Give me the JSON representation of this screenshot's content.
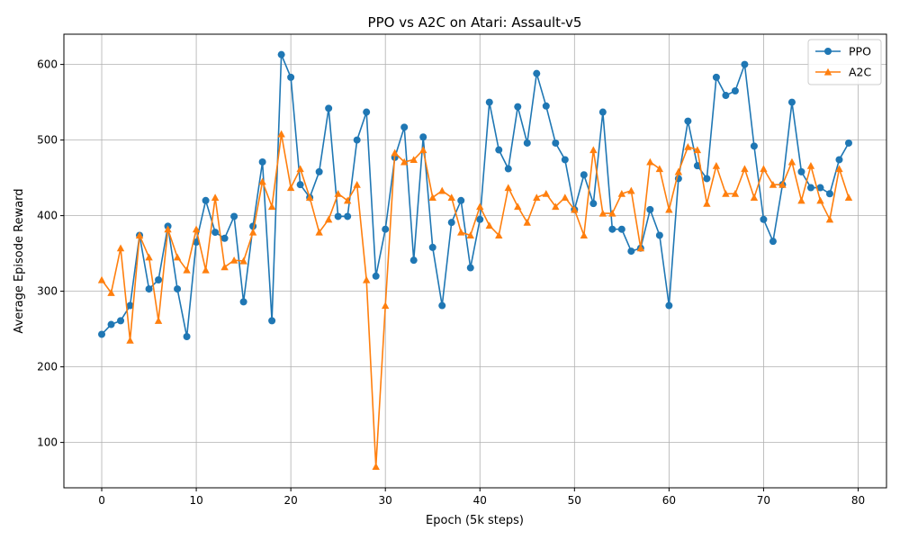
{
  "chart_data": {
    "type": "line",
    "title": "PPO vs A2C on Atari: Assault-v5",
    "xlabel": "Epoch (5k steps)",
    "ylabel": "Average Episode Reward",
    "xlim": [
      -4,
      83
    ],
    "ylim": [
      40,
      640
    ],
    "xticks": [
      0,
      10,
      20,
      30,
      40,
      50,
      60,
      70,
      80
    ],
    "yticks": [
      100,
      200,
      300,
      400,
      500,
      600
    ],
    "grid": true,
    "legend_position": "top-right",
    "x": [
      0,
      1,
      2,
      3,
      4,
      5,
      6,
      7,
      8,
      9,
      10,
      11,
      12,
      13,
      14,
      15,
      16,
      17,
      18,
      19,
      20,
      21,
      22,
      23,
      24,
      25,
      26,
      27,
      28,
      29,
      30,
      31,
      32,
      33,
      34,
      35,
      36,
      37,
      38,
      39,
      40,
      41,
      42,
      43,
      44,
      45,
      46,
      47,
      48,
      49,
      50,
      51,
      52,
      53,
      54,
      55,
      56,
      57,
      58,
      59,
      60,
      61,
      62,
      63,
      64,
      65,
      66,
      67,
      68,
      69,
      70,
      71,
      72,
      73,
      74,
      75,
      76,
      77,
      78,
      79
    ],
    "series": [
      {
        "name": "PPO",
        "color": "#1f77b4",
        "marker": "circle",
        "values": [
          243,
          256,
          261,
          281,
          374,
          303,
          315,
          386,
          303,
          240,
          365,
          420,
          378,
          370,
          399,
          286,
          386,
          471,
          261,
          613,
          583,
          441,
          424,
          458,
          542,
          399,
          399,
          500,
          537,
          320,
          382,
          477,
          517,
          341,
          504,
          358,
          281,
          391,
          420,
          331,
          395,
          550,
          487,
          462,
          544,
          496,
          588,
          545,
          496,
          474,
          408,
          454,
          416,
          537,
          382,
          382,
          353,
          357,
          408,
          374,
          281,
          449,
          525,
          466,
          449,
          583,
          559,
          565,
          600,
          492,
          395,
          366,
          441,
          550,
          458,
          437,
          437,
          429,
          474,
          496
        ]
      },
      {
        "name": "A2C",
        "color": "#ff7f0e",
        "marker": "triangle",
        "values": [
          315,
          298,
          357,
          235,
          374,
          345,
          261,
          382,
          345,
          328,
          382,
          328,
          424,
          332,
          341,
          340,
          378,
          445,
          412,
          508,
          437,
          462,
          424,
          378,
          395,
          429,
          420,
          441,
          315,
          68,
          281,
          483,
          471,
          474,
          487,
          424,
          433,
          424,
          378,
          374,
          412,
          387,
          374,
          437,
          412,
          391,
          424,
          429,
          412,
          424,
          408,
          374,
          487,
          403,
          403,
          429,
          433,
          357,
          471,
          462,
          408,
          458,
          491,
          487,
          416,
          466,
          429,
          429,
          462,
          424,
          462,
          441,
          441,
          471,
          420,
          466,
          420,
          395,
          462,
          424
        ]
      }
    ]
  }
}
